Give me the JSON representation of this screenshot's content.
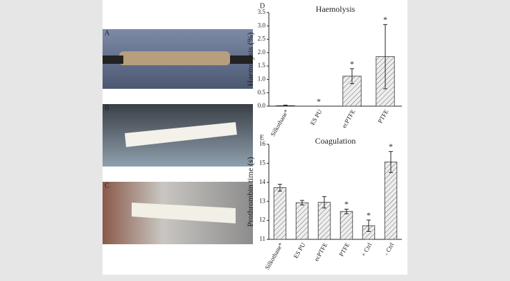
{
  "panels": [
    "A",
    "B",
    "C"
  ],
  "chart_data": [
    {
      "type": "bar",
      "panel_label": "D",
      "title": "Haemolysis",
      "y_label": "Haemolysis (%)",
      "categories": [
        "Silkothane*",
        "ES PU",
        "ecPTFE",
        "PTFE"
      ],
      "values": [
        0.02,
        0.0,
        1.12,
        1.85
      ],
      "errors": [
        0.02,
        0.0,
        0.28,
        1.2
      ],
      "annotations": [
        null,
        "*",
        "*",
        "*"
      ],
      "ylim": [
        0,
        3.5
      ],
      "yticks": [
        {
          "value": 0,
          "label": "0.0"
        },
        {
          "value": 0.5,
          "label": "0.5"
        },
        {
          "value": 1,
          "label": "1.0"
        },
        {
          "value": 1.5,
          "label": "1.5"
        },
        {
          "value": 2,
          "label": "2.0"
        },
        {
          "value": 2.5,
          "label": "2.5"
        },
        {
          "value": 3,
          "label": "3.0"
        },
        {
          "value": 3.5,
          "label": "3.5"
        }
      ],
      "color": "#d9d9d9"
    },
    {
      "type": "bar",
      "panel_label": "E",
      "title": "Coagulation",
      "y_label": "Prothrombin time (s)",
      "categories": [
        "Silkothane*",
        "ES PU",
        "ecPTFE",
        "PTFE",
        "+ Ctrl",
        "- Ctrl"
      ],
      "values": [
        13.72,
        12.93,
        12.95,
        12.47,
        11.72,
        15.07
      ],
      "errors": [
        0.18,
        0.12,
        0.3,
        0.12,
        0.3,
        0.55
      ],
      "annotations": [
        null,
        null,
        null,
        "*",
        "*",
        "*"
      ],
      "ylim": [
        11,
        16
      ],
      "yticks": [
        11,
        12,
        13,
        14,
        15,
        16
      ],
      "color": "#d9d9d9"
    }
  ]
}
